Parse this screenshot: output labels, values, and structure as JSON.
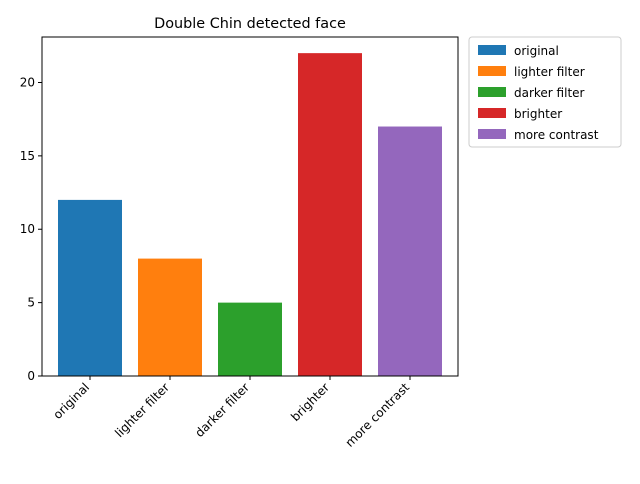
{
  "chart_data": {
    "type": "bar",
    "title": "Double Chin detected face",
    "categories": [
      "original",
      "lighter filter",
      "darker filter",
      "brighter",
      "more contrast"
    ],
    "values": [
      12,
      8,
      5,
      22,
      17
    ],
    "colors": [
      "#1f77b4",
      "#ff7f0e",
      "#2ca02c",
      "#d62728",
      "#9467bd"
    ],
    "xlabel": "",
    "ylabel": "",
    "ylim": [
      0,
      23.1
    ],
    "yticks": [
      0,
      5,
      10,
      15,
      20
    ],
    "ytick_labels": [
      "0",
      "5",
      "10",
      "15",
      "20"
    ],
    "grid": false,
    "legend": {
      "placement": "outside-right-top",
      "entries": [
        "original",
        "lighter filter",
        "darker filter",
        "brighter",
        "more contrast"
      ]
    }
  }
}
